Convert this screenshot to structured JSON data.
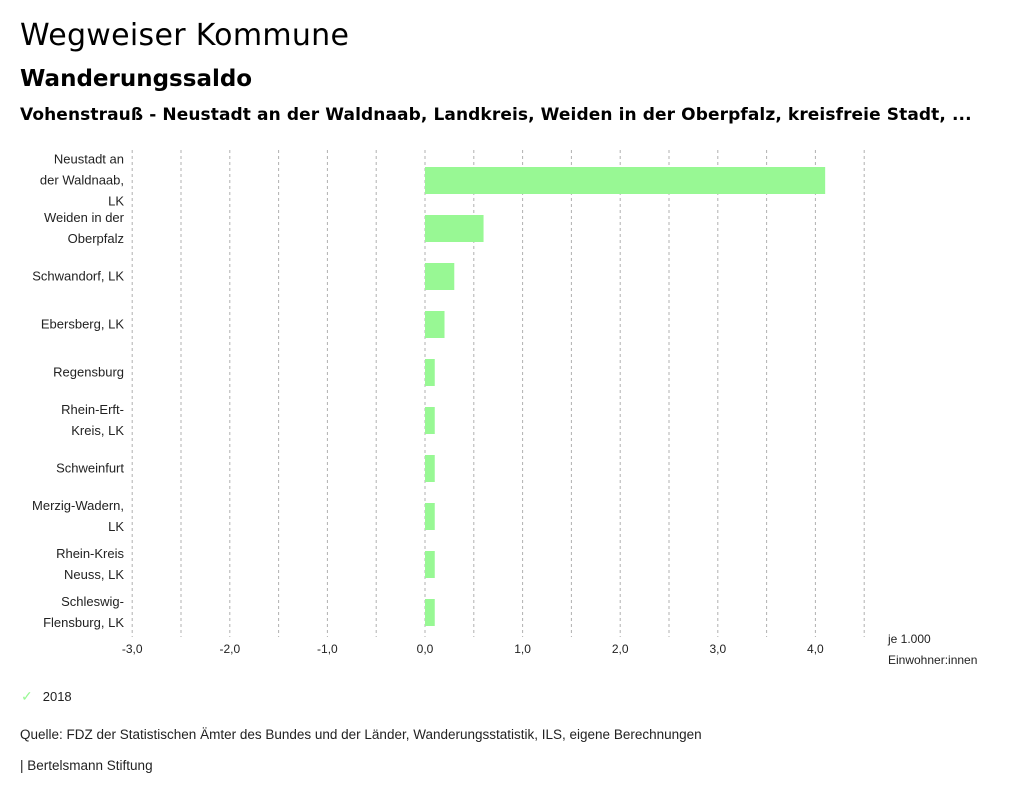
{
  "header": {
    "title": "Wegweiser Kommune",
    "subtitle": "Wanderungssaldo",
    "region": "Vohenstrauß - Neustadt an der Waldnaab, Landkreis, Weiden in der Oberpfalz, kreisfreie Stadt, ..."
  },
  "chart_data": {
    "type": "bar",
    "orientation": "horizontal",
    "title": "Wanderungssaldo",
    "xlabel": "je 1.000 Einwohner:innen",
    "xlabel_lines": [
      "je 1.000",
      "Einwohner:innen"
    ],
    "ylabel": "",
    "xlim": [
      -3.0,
      4.5
    ],
    "x_ticks": [
      -3.0,
      -2.0,
      -1.0,
      0.0,
      1.0,
      2.0,
      3.0,
      4.0
    ],
    "x_tick_labels": [
      "-3,0",
      "-2,0",
      "-1,0",
      "0,0",
      "1,0",
      "2,0",
      "3,0",
      "4,0"
    ],
    "grid": true,
    "grid_step": 0.5,
    "categories": [
      "Neustadt an der Waldnaab, LK",
      "Weiden in der Oberpfalz",
      "Schwandorf, LK",
      "Ebersberg, LK",
      "Regensburg",
      "Rhein-Erft-Kreis, LK",
      "Schweinfurt",
      "Merzig-Wadern, LK",
      "Rhein-Kreis Neuss, LK",
      "Schleswig-Flensburg, LK"
    ],
    "category_lines": [
      [
        "Neustadt an",
        "der Waldnaab,",
        "LK"
      ],
      [
        "Weiden in der",
        "Oberpfalz"
      ],
      [
        "Schwandorf, LK"
      ],
      [
        "Ebersberg, LK"
      ],
      [
        "Regensburg"
      ],
      [
        "Rhein-Erft-",
        "Kreis, LK"
      ],
      [
        "Schweinfurt"
      ],
      [
        "Merzig-Wadern,",
        "LK"
      ],
      [
        "Rhein-Kreis",
        "Neuss, LK"
      ],
      [
        "Schleswig-",
        "Flensburg, LK"
      ]
    ],
    "series": [
      {
        "name": "2018",
        "color": "#98f894",
        "values": [
          4.1,
          0.6,
          0.3,
          0.2,
          0.1,
          0.1,
          0.1,
          0.1,
          0.1,
          0.1
        ]
      }
    ],
    "legend": {
      "position": "bottom-left",
      "entries": [
        "2018"
      ]
    }
  },
  "legend": {
    "label": "2018",
    "icon": "check-icon"
  },
  "footer": {
    "source": "Quelle: FDZ der Statistischen Ämter des Bundes und der Länder, Wanderungsstatistik, ILS, eigene Berechnungen",
    "brand": "| Bertelsmann Stiftung"
  },
  "colors": {
    "bar": "#98f894",
    "grid": "#b0b0b0",
    "text": "#222222"
  }
}
